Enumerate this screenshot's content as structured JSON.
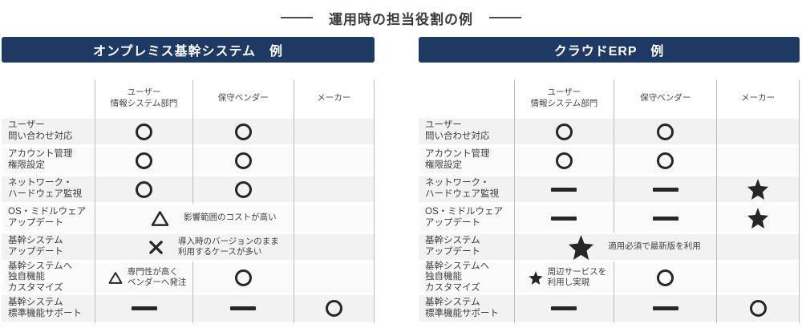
{
  "title": "運用時の担当役割の例",
  "colors": {
    "header_bg": "#1e3a64",
    "header_text": "#ffffff",
    "symbol": "#262626",
    "divider": "#bcbcbc",
    "band_odd": "#f2f2f2",
    "band_even": "#fafafa"
  },
  "panels": [
    {
      "id": "onpremise",
      "header": "オンプレミス基幹システム　例",
      "columns": [
        "ユーザー\n情報システム部門",
        "保守ベンダー",
        "メーカー"
      ],
      "rows": [
        {
          "label": "ユーザー\n問い合わせ対応",
          "cells": [
            {
              "symbol": "circle"
            },
            {
              "symbol": "circle"
            },
            {
              "symbol": "none"
            }
          ]
        },
        {
          "label": "アカウント管理\n権限設定",
          "cells": [
            {
              "symbol": "circle"
            },
            {
              "symbol": "circle"
            },
            {
              "symbol": "none"
            }
          ]
        },
        {
          "label": "ネットワーク・\nハードウェア監視",
          "cells": [
            {
              "symbol": "circle"
            },
            {
              "symbol": "circle"
            },
            {
              "symbol": "none"
            }
          ]
        },
        {
          "label": "OS・ミドルウェア\nアップデート",
          "cells": [
            {
              "symbol": "triangle",
              "text": "影響範囲のコストが高い",
              "span": 2
            },
            {
              "symbol": "none"
            }
          ]
        },
        {
          "label": "基幹システム\nアップデート",
          "cells": [
            {
              "symbol": "x",
              "text": "導入時のバージョンのまま\n利用するケースが多い",
              "span": 2
            },
            {
              "symbol": "none"
            }
          ]
        },
        {
          "label": "基幹システムへ\n独自機能\nカスタマイズ",
          "cells": [
            {
              "symbol": "triangle",
              "text": "専門性が高く\nベンダーへ発注"
            },
            {
              "symbol": "circle"
            },
            {
              "symbol": "none"
            }
          ]
        },
        {
          "label": "基幹システム\n標準機能サポート",
          "cells": [
            {
              "symbol": "dash"
            },
            {
              "symbol": "dash"
            },
            {
              "symbol": "circle"
            }
          ]
        }
      ]
    },
    {
      "id": "cloud",
      "header": "クラウドERP　例",
      "columns": [
        "ユーザー\n情報システム部門",
        "保守ベンダー",
        "メーカー"
      ],
      "rows": [
        {
          "label": "ユーザー\n問い合わせ対応",
          "cells": [
            {
              "symbol": "circle"
            },
            {
              "symbol": "circle"
            },
            {
              "symbol": "none"
            }
          ]
        },
        {
          "label": "アカウント管理\n権限設定",
          "cells": [
            {
              "symbol": "circle"
            },
            {
              "symbol": "circle"
            },
            {
              "symbol": "none"
            }
          ]
        },
        {
          "label": "ネットワーク・\nハードウェア監視",
          "cells": [
            {
              "symbol": "dash"
            },
            {
              "symbol": "dash"
            },
            {
              "symbol": "star"
            }
          ]
        },
        {
          "label": "OS・ミドルウェア\nアップデート",
          "cells": [
            {
              "symbol": "dash"
            },
            {
              "symbol": "dash"
            },
            {
              "symbol": "star"
            }
          ]
        },
        {
          "label": "基幹システム\nアップデート",
          "cells": [
            {
              "symbol": "star",
              "text": "適用必須で最新版を利用",
              "span": 2
            },
            {
              "symbol": "none"
            }
          ]
        },
        {
          "label": "基幹システムへ\n独自機能\nカスタマイズ",
          "cells": [
            {
              "symbol": "star",
              "text": "周辺サービスを\n利用し実現"
            },
            {
              "symbol": "circle"
            },
            {
              "symbol": "none"
            }
          ]
        },
        {
          "label": "基幹システム\n標準機能サポート",
          "cells": [
            {
              "symbol": "dash"
            },
            {
              "symbol": "dash"
            },
            {
              "symbol": "circle"
            }
          ]
        }
      ]
    }
  ]
}
